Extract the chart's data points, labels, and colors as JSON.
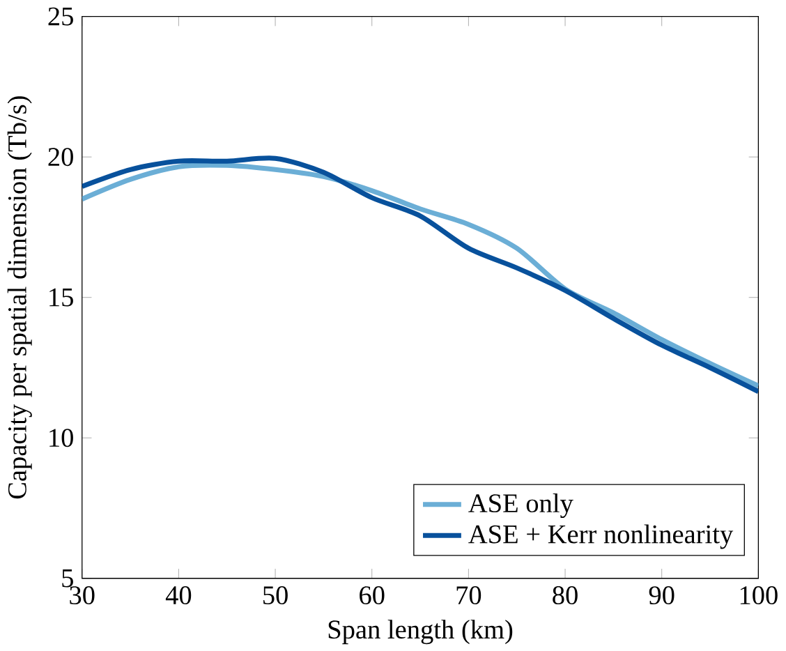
{
  "chart_data": {
    "type": "line",
    "xlabel": "Span length (km)",
    "ylabel": "Capacity per spatial dimension (Tb/s)",
    "x": [
      30,
      35,
      40,
      45,
      50,
      55,
      60,
      65,
      70,
      75,
      80,
      85,
      90,
      95,
      100
    ],
    "series": [
      {
        "name": "ASE only",
        "color": "#6baed6",
        "values": [
          18.5,
          19.2,
          19.65,
          19.7,
          19.55,
          19.3,
          18.8,
          18.15,
          17.6,
          16.75,
          15.3,
          14.45,
          13.5,
          12.65,
          11.85
        ]
      },
      {
        "name": "ASE + Kerr nonlinearity",
        "color": "#08519c",
        "values": [
          18.95,
          19.55,
          19.85,
          19.85,
          19.95,
          19.45,
          18.55,
          17.9,
          16.75,
          16.05,
          15.25,
          14.25,
          13.3,
          12.5,
          11.65
        ]
      }
    ],
    "xlim": [
      30,
      100
    ],
    "ylim": [
      5,
      25
    ],
    "xticks": [
      30,
      40,
      50,
      60,
      70,
      80,
      90,
      100
    ],
    "yticks": [
      5,
      10,
      15,
      20,
      25
    ],
    "legend": "bottom right",
    "grid": false,
    "marker": "none",
    "line_style": "solid"
  }
}
